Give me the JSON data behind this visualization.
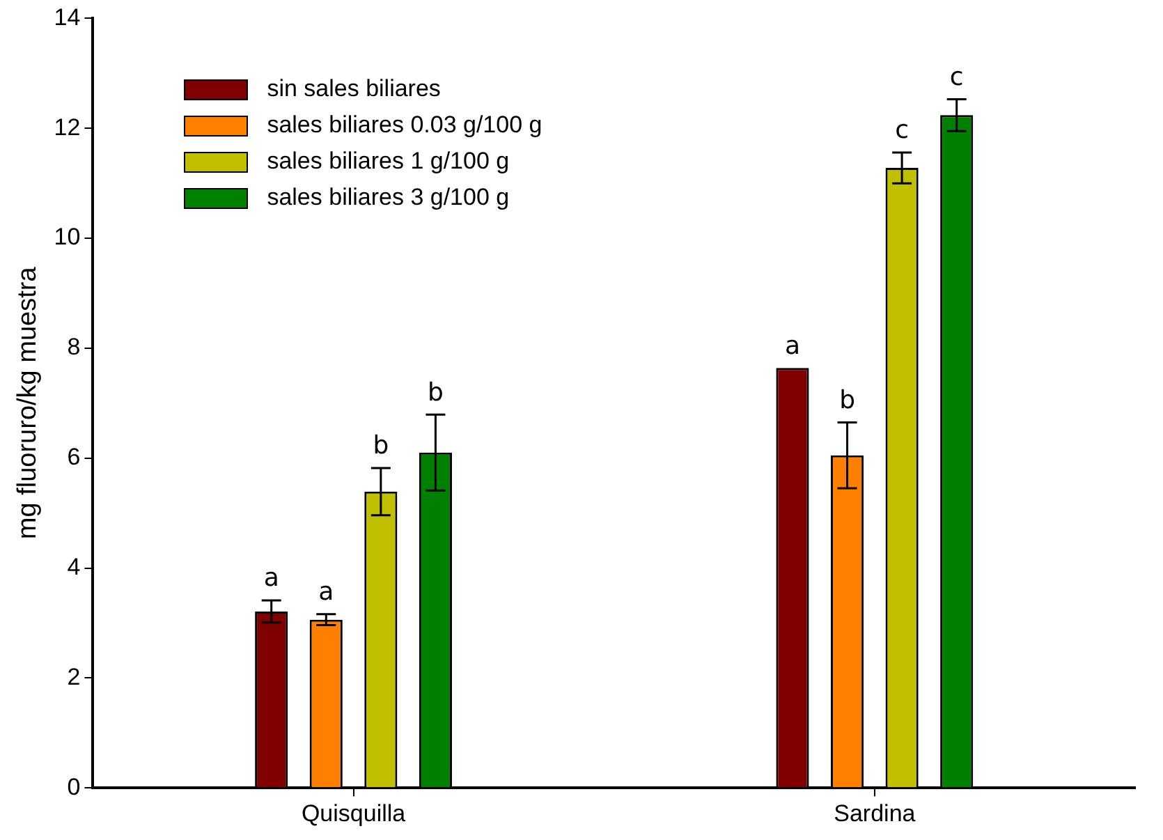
{
  "chart_data": {
    "type": "bar",
    "ylabel": "mg fluoruro/kg muestra",
    "categories": [
      "Quisquilla",
      "Sardina"
    ],
    "series": [
      {
        "name": "sin sales biliares",
        "color": "#800000",
        "values": [
          3.21,
          7.64
        ],
        "errors": [
          0.2,
          null
        ],
        "value_labels": [
          "a",
          "a"
        ]
      },
      {
        "name": "sales biliares 0.03 g/100 g",
        "color": "#ff8000",
        "values": [
          3.06,
          6.05
        ],
        "errors": [
          0.1,
          0.6
        ],
        "value_labels": [
          "a",
          "b"
        ]
      },
      {
        "name": "sales biliares 1 g/100 g",
        "color": "#c0c000",
        "values": [
          5.39,
          11.28
        ],
        "errors": [
          0.43,
          0.28
        ],
        "value_labels": [
          "b",
          "c"
        ]
      },
      {
        "name": "sales biliares 3 g/100 g",
        "color": "#008000",
        "values": [
          6.1,
          12.24
        ],
        "errors": [
          0.69,
          0.29
        ],
        "value_labels": [
          "b",
          "c"
        ]
      }
    ],
    "ylim": [
      0,
      14
    ],
    "yticks": [
      0,
      2,
      4,
      6,
      8,
      10,
      12,
      14
    ],
    "grid": false,
    "legend": "top left"
  }
}
